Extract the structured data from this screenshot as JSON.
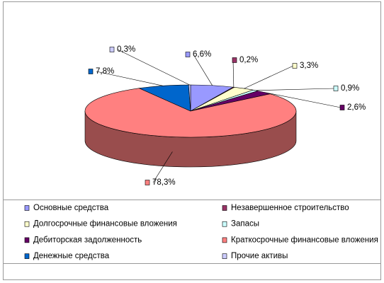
{
  "chart_data": {
    "type": "pie",
    "categories": [
      "Основные средства",
      "Незавершенное строительство",
      "Долгосрочные финансовые вложения",
      "Запасы",
      "Дебиторская задолженность",
      "Краткосрочные финансовые вложения",
      "Денежные средства",
      "Прочие активы"
    ],
    "values": [
      6.6,
      0.2,
      3.3,
      0.9,
      2.6,
      78.3,
      7.8,
      0.3
    ],
    "value_labels": [
      "6,6%",
      "0,2%",
      "3,3%",
      "0,9%",
      "2,6%",
      "78,3%",
      "7,8%",
      "0,3%"
    ],
    "colors": [
      "#9999ff",
      "#993366",
      "#ffffcc",
      "#ccffff",
      "#660066",
      "#ff8080",
      "#0066cc",
      "#ccccff"
    ],
    "legend": "bottom"
  }
}
